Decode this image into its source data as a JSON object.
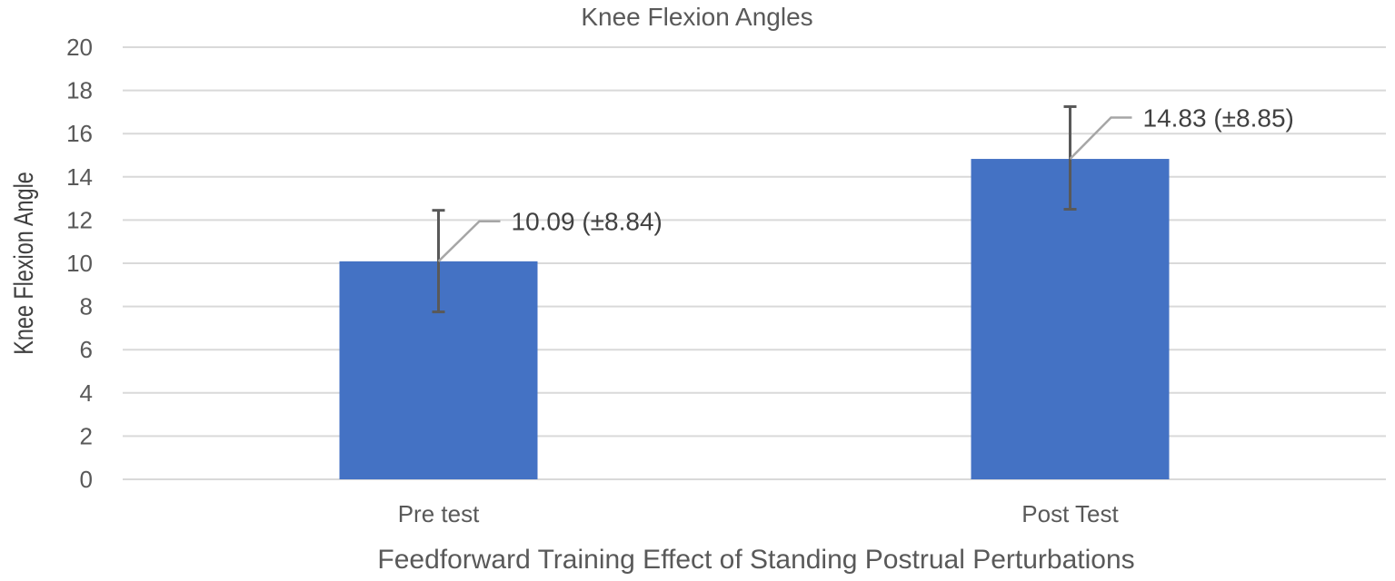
{
  "chart_data": {
    "type": "bar",
    "title": "Knee Flexion Angles",
    "xlabel": "Feedforward Training Effect of Standing Postrual Perturbations",
    "ylabel": "Knee Flexion Angle",
    "categories": [
      "Pre test",
      "Post Test"
    ],
    "values": [
      10.09,
      14.83
    ],
    "error_bars": [
      {
        "lower": 7.75,
        "upper": 12.45
      },
      {
        "lower": 12.5,
        "upper": 17.25
      }
    ],
    "data_labels": [
      "10.09 (±8.84)",
      "14.83 (±8.85)"
    ],
    "ylim": [
      0,
      20
    ],
    "yticks": [
      0,
      2,
      4,
      6,
      8,
      10,
      12,
      14,
      16,
      18,
      20
    ],
    "grid": true,
    "legend": "none",
    "colors": {
      "bar": "#4472c4"
    }
  }
}
